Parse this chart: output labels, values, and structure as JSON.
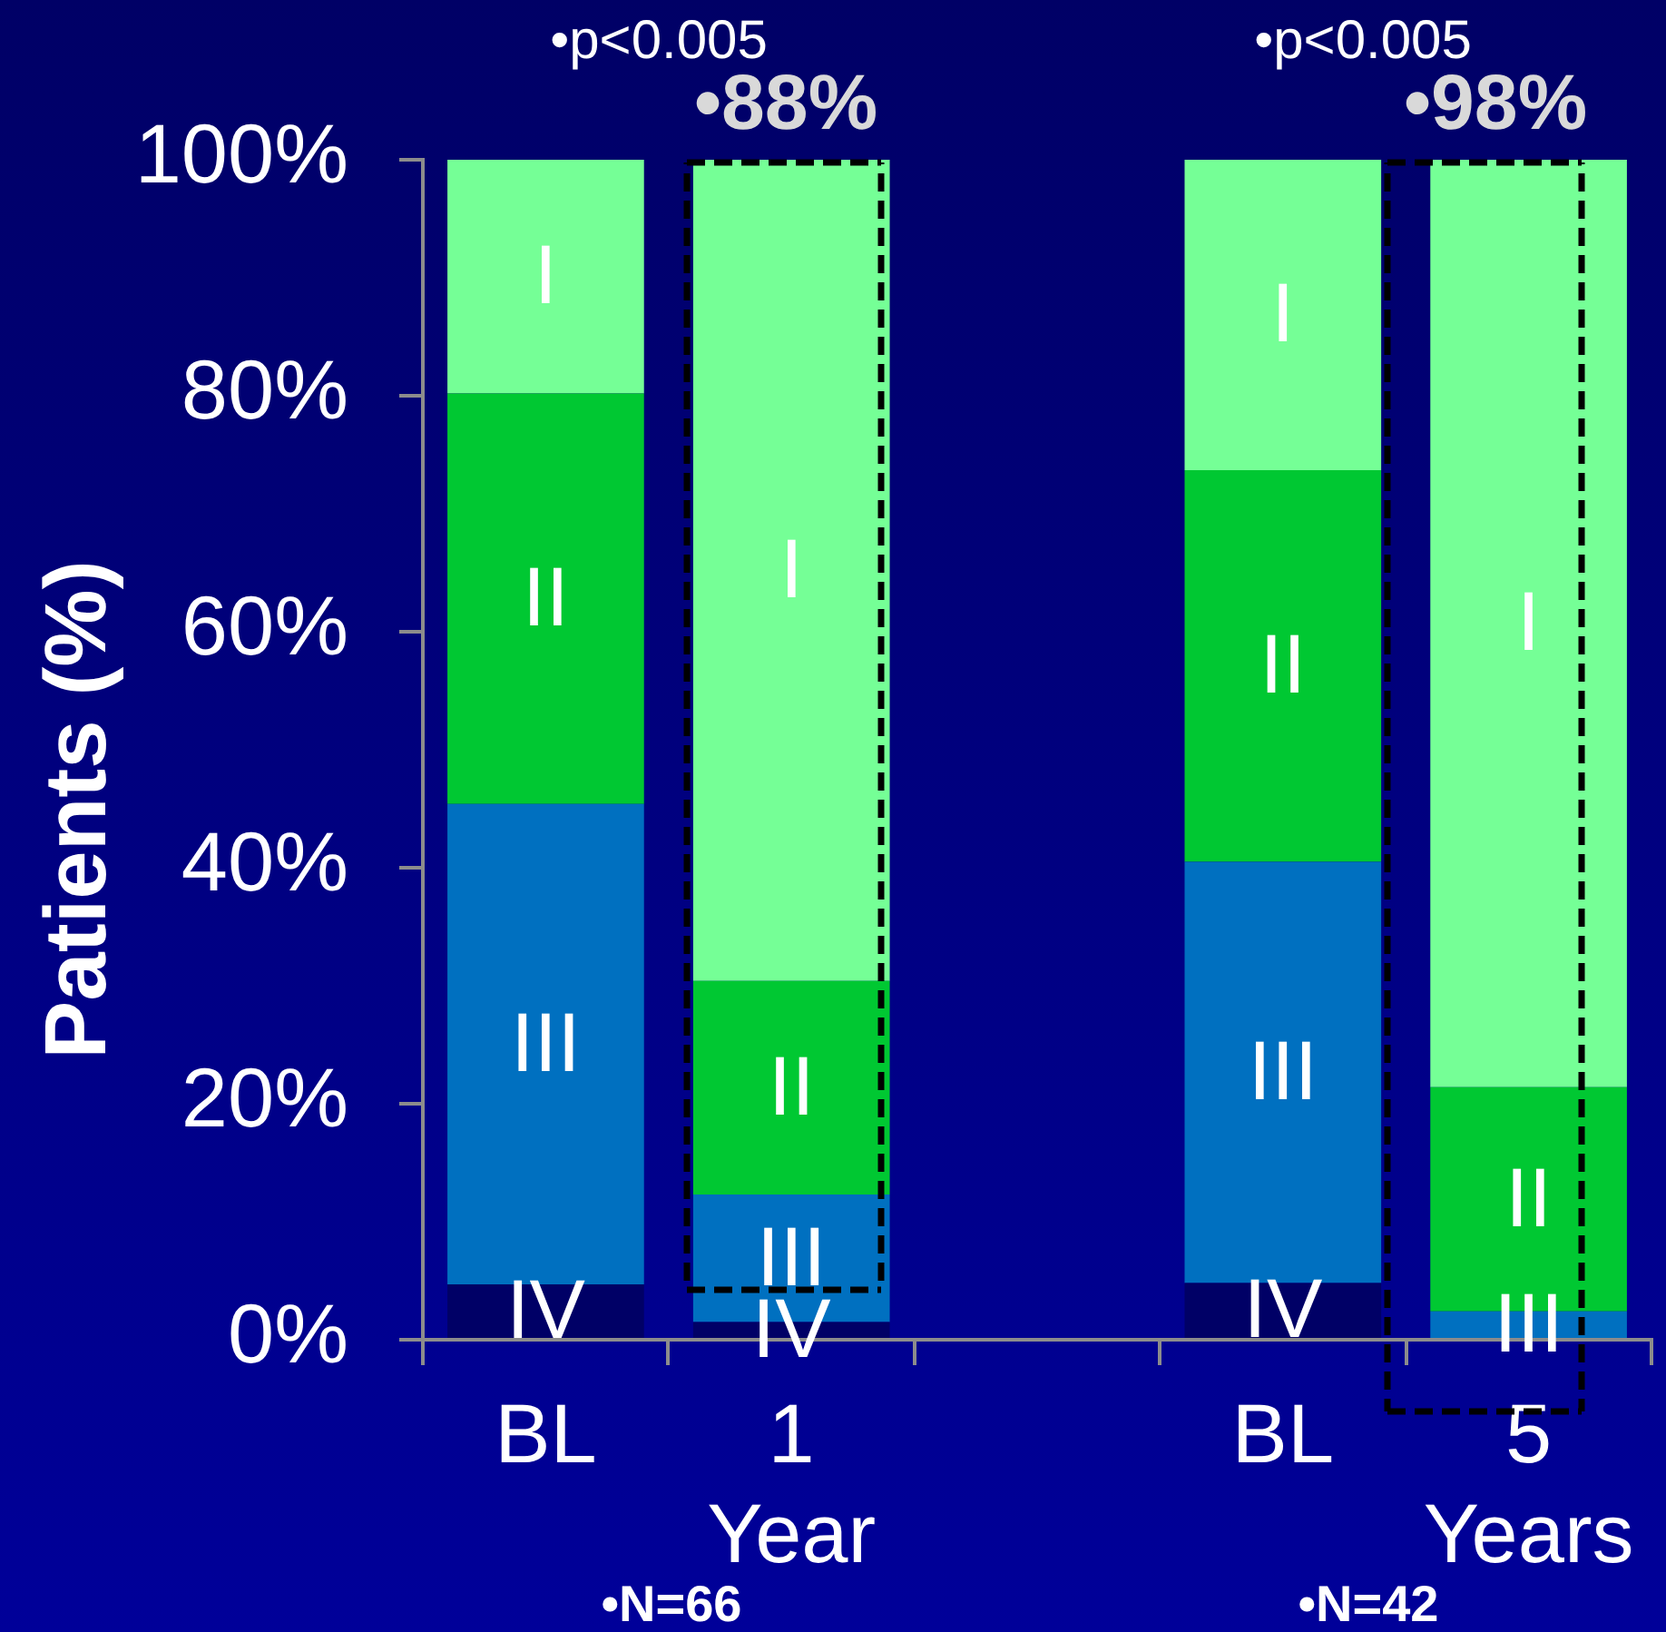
{
  "chart_data": {
    "type": "bar",
    "stacked": true,
    "ylabel": "Patients (%)",
    "categories": [
      "BL",
      "1 Year",
      null,
      "BL",
      "5 Years"
    ],
    "series": [
      {
        "name": "IV",
        "color": "#000066",
        "values": [
          4.7,
          1.5,
          null,
          4.8,
          null
        ]
      },
      {
        "name": "III",
        "color": "#0070c0",
        "values": [
          40.7,
          10.8,
          null,
          35.7,
          2.4
        ]
      },
      {
        "name": "II",
        "color": "#00c832",
        "values": [
          34.8,
          18.1,
          null,
          33.2,
          19.0
        ]
      },
      {
        "name": "I",
        "color": "#75ff96",
        "values": [
          19.8,
          69.6,
          null,
          26.3,
          78.6
        ]
      }
    ],
    "ylim": [
      0,
      100
    ],
    "yticks": [
      {
        "value": 0,
        "label": "0%"
      },
      {
        "value": 20,
        "label": "20%"
      },
      {
        "value": 40,
        "label": "40%"
      },
      {
        "value": 60,
        "label": "60%"
      },
      {
        "value": 80,
        "label": "80%"
      },
      {
        "value": 100,
        "label": "100%"
      }
    ],
    "annotations": [
      "•p<0.005",
      "•p<0.005",
      "•88%",
      "•98%",
      "•N=66",
      "•N=42"
    ],
    "grid": false,
    "legend": false
  }
}
